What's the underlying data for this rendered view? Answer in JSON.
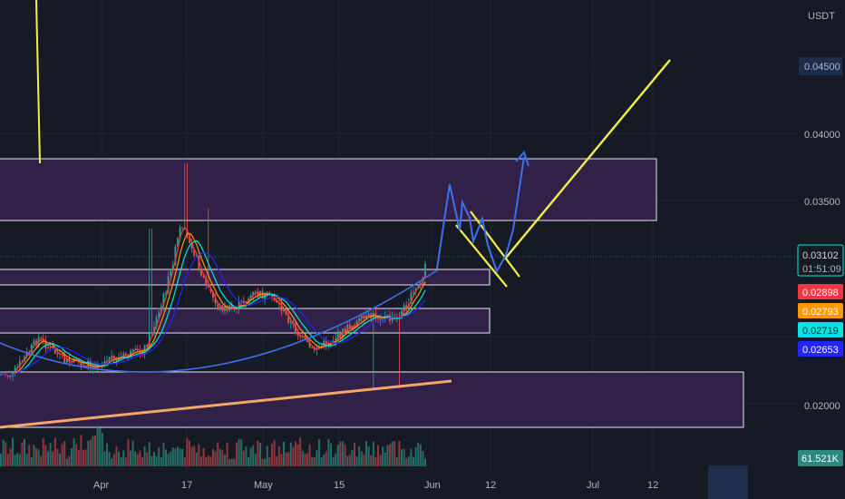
{
  "currency_label": "USDT",
  "colors": {
    "background": "#161a25",
    "grid": "#232733",
    "zone_fill": "#3a2352",
    "zone_border": "#e6e6ee",
    "candle_up": "#26a69a",
    "candle_down": "#ef5350",
    "ma_red": "#f23645",
    "ma_orange": "#ff9800",
    "ma_cyan": "#00e5e5",
    "ma_blue": "#2424ff",
    "projection_blue": "#3d6ff0",
    "trend_yellow": "#f4f047",
    "trend_orange": "#f7a668",
    "volume_down": "#b8424a",
    "volume_up": "#2b8a7e"
  },
  "chart_data": {
    "type": "candlestick",
    "instrument_quote": "USDT",
    "ylim": [
      0.018,
      0.0472
    ],
    "y_tick_labels": [
      {
        "label": "0.04500",
        "value": 0.045
      },
      {
        "label": "0.04000",
        "value": 0.04
      },
      {
        "label": "0.03500",
        "value": 0.035
      },
      {
        "label": "0.02000",
        "value": 0.02
      }
    ],
    "x_tick_labels": [
      {
        "label": "Apr",
        "date": "2023-04-01"
      },
      {
        "label": "17",
        "date": "2023-04-17"
      },
      {
        "label": "May",
        "date": "2023-05-01"
      },
      {
        "label": "15",
        "date": "2023-05-15"
      },
      {
        "label": "Jun",
        "date": "2023-06-01"
      },
      {
        "label": "12",
        "date": "2023-06-12"
      },
      {
        "label": "Jul",
        "date": "2023-07-01"
      },
      {
        "label": "12",
        "date": "2023-07-12"
      }
    ],
    "price_tags": [
      {
        "label": "0.03102",
        "value": 0.03102,
        "sub_label": "01:51:09",
        "bg": "#161a25",
        "border": "#00e5e5",
        "text_color": "#d6d6dc"
      },
      {
        "label": "0.02898",
        "value": 0.02898,
        "bg": "#f23645",
        "text_color": "#ffffff"
      },
      {
        "label": "0.02793",
        "value": 0.02793,
        "bg": "#ff9800",
        "text_color": "#ffffff"
      },
      {
        "label": "0.02719",
        "value": 0.02719,
        "bg": "#00e5e5",
        "text_color": "#10202a"
      },
      {
        "label": "0.02653",
        "value": 0.02653,
        "bg": "#2424ff",
        "text_color": "#ffffff"
      }
    ],
    "volume_tag": {
      "label": "61.521K",
      "bg": "#2b8a7e",
      "text_color": "#ffffff"
    },
    "last_price": 0.03102,
    "price_path": [
      {
        "date": "2023-03-15",
        "price": 0.0222
      },
      {
        "date": "2023-03-20",
        "price": 0.0249
      },
      {
        "date": "2023-03-25",
        "price": 0.0232
      },
      {
        "date": "2023-03-30",
        "price": 0.0229
      },
      {
        "date": "2023-04-04",
        "price": 0.0234
      },
      {
        "date": "2023-04-09",
        "price": 0.024
      },
      {
        "date": "2023-04-12",
        "price": 0.0268
      },
      {
        "date": "2023-04-14",
        "price": 0.0296
      },
      {
        "date": "2023-04-16",
        "price": 0.033
      },
      {
        "date": "2023-04-18",
        "price": 0.032
      },
      {
        "date": "2023-04-20",
        "price": 0.0296
      },
      {
        "date": "2023-04-23",
        "price": 0.0272
      },
      {
        "date": "2023-04-26",
        "price": 0.027
      },
      {
        "date": "2023-04-30",
        "price": 0.0282
      },
      {
        "date": "2023-05-04",
        "price": 0.0278
      },
      {
        "date": "2023-05-08",
        "price": 0.0254
      },
      {
        "date": "2023-05-11",
        "price": 0.024
      },
      {
        "date": "2023-05-15",
        "price": 0.0248
      },
      {
        "date": "2023-05-19",
        "price": 0.026
      },
      {
        "date": "2023-05-23",
        "price": 0.0266
      },
      {
        "date": "2023-05-27",
        "price": 0.0262
      },
      {
        "date": "2023-05-30",
        "price": 0.028
      },
      {
        "date": "2023-06-01",
        "price": 0.0292
      },
      {
        "date": "2023-06-02",
        "price": 0.03102
      }
    ],
    "zones": [
      {
        "price_top": 0.0381,
        "price_bottom": 0.0337,
        "date_end": "2023-07-12"
      },
      {
        "price_top": 0.0305,
        "price_bottom": 0.0296,
        "date_end": "2023-06-14"
      },
      {
        "price_top": 0.0289,
        "price_bottom": 0.0268,
        "date_end": "2023-06-14"
      },
      {
        "price_top": 0.0227,
        "price_bottom": 0.0186,
        "date_end": "2023-07-22"
      }
    ],
    "price_lines": [
      {
        "name": "",
        "points": [
          {
            "date": "2023-03-15",
            "price": 0.0185
          },
          {
            "date": "2023-06-03",
            "price": 0.0218
          }
        ],
        "color": "#f7a668"
      },
      {
        "name": "",
        "points": [
          {
            "date": "2023-06-10",
            "price": 0.0305
          },
          {
            "date": "2023-07-13",
            "price": 0.0459
          }
        ],
        "color": "#f4f047"
      }
    ]
  }
}
